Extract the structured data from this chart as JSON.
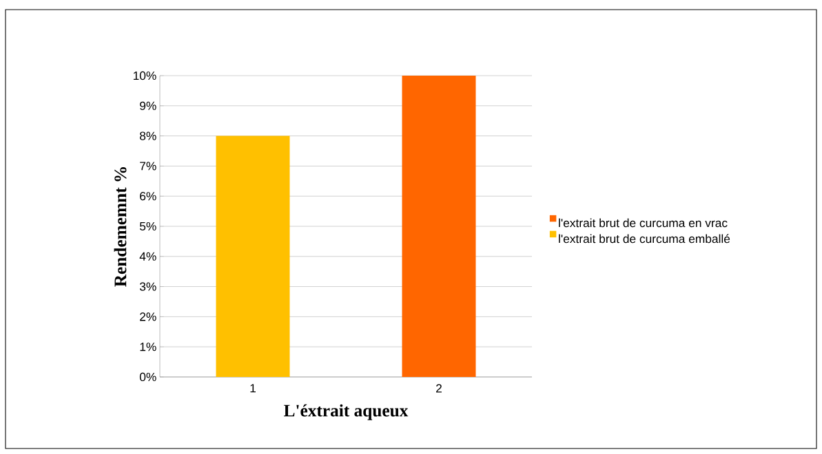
{
  "chart_data": {
    "type": "bar",
    "xlabel": "L'éxtrait aqueux",
    "ylabel": "Rendememnt %",
    "categories": [
      "1",
      "2"
    ],
    "series": [
      {
        "name": "l'extrait brut de curcuma en vrac",
        "color": "#ff6600",
        "values": [
          null,
          10
        ]
      },
      {
        "name": "l'extrait brut de curcuma emballé",
        "color": "#ffc000",
        "values": [
          8,
          null
        ]
      }
    ],
    "ylim": [
      0,
      10
    ],
    "yticks": [
      {
        "value": 0,
        "label": "0%"
      },
      {
        "value": 1,
        "label": "1%"
      },
      {
        "value": 2,
        "label": "2%"
      },
      {
        "value": 3,
        "label": "3%"
      },
      {
        "value": 4,
        "label": "4%"
      },
      {
        "value": 5,
        "label": "5%"
      },
      {
        "value": 6,
        "label": "6%"
      },
      {
        "value": 7,
        "label": "7%"
      },
      {
        "value": 8,
        "label": "8%"
      },
      {
        "value": 9,
        "label": "9%"
      },
      {
        "value": 10,
        "label": "10%"
      }
    ],
    "grid": "y",
    "legend": "right"
  }
}
